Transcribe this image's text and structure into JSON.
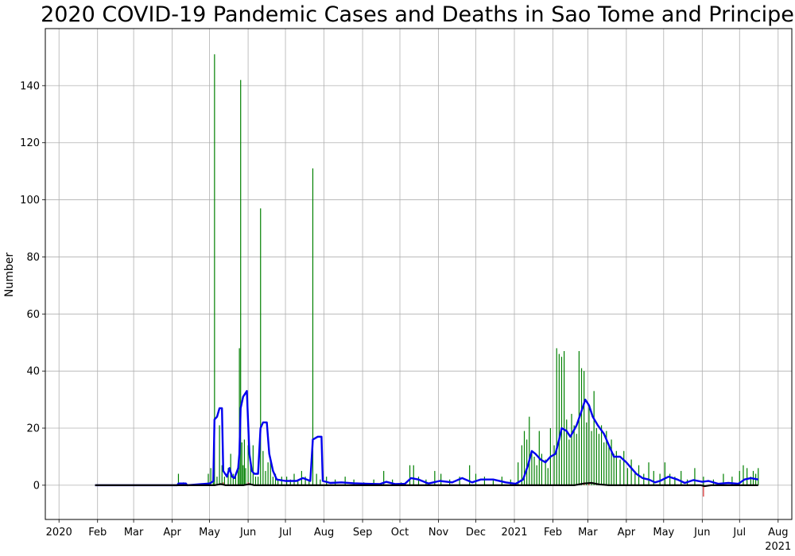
{
  "chart_data": {
    "type": "bar",
    "title": "2020 COVID-19 Pandemic Cases and Deaths in Sao Tome and Principe",
    "xlabel": "",
    "ylabel": "Number",
    "ylim": [
      -12,
      160
    ],
    "xlim": [
      "2019-12-21",
      "2021-08-12"
    ],
    "grid": true,
    "y_ticks": [
      0,
      20,
      40,
      60,
      80,
      100,
      120,
      140
    ],
    "x_ticks": [
      {
        "date": "2020-01-01",
        "label": "2020"
      },
      {
        "date": "2020-02-01",
        "label": "Feb"
      },
      {
        "date": "2020-03-01",
        "label": "Mar"
      },
      {
        "date": "2020-04-01",
        "label": "Apr"
      },
      {
        "date": "2020-05-01",
        "label": "May"
      },
      {
        "date": "2020-06-01",
        "label": "Jun"
      },
      {
        "date": "2020-07-01",
        "label": "Jul"
      },
      {
        "date": "2020-08-01",
        "label": "Aug"
      },
      {
        "date": "2020-09-01",
        "label": "Sep"
      },
      {
        "date": "2020-10-01",
        "label": "Oct"
      },
      {
        "date": "2020-11-01",
        "label": "Nov"
      },
      {
        "date": "2020-12-01",
        "label": "Dec"
      },
      {
        "date": "2021-01-01",
        "label": "2021"
      },
      {
        "date": "2021-02-01",
        "label": "Feb"
      },
      {
        "date": "2021-03-01",
        "label": "Mar"
      },
      {
        "date": "2021-04-01",
        "label": "Apr"
      },
      {
        "date": "2021-05-01",
        "label": "May"
      },
      {
        "date": "2021-06-01",
        "label": "Jun"
      },
      {
        "date": "2021-07-01",
        "label": "Jul"
      },
      {
        "date": "2021-08-01",
        "label": "Aug"
      }
    ],
    "x_secondary_label": {
      "date": "2021-08-01",
      "label": "2021"
    },
    "series": [
      {
        "kind": "bar",
        "color": "#008000",
        "points": [
          [
            "2020-04-06",
            4
          ],
          [
            "2020-04-10",
            1
          ],
          [
            "2020-04-30",
            4
          ],
          [
            "2020-05-02",
            6
          ],
          [
            "2020-05-04",
            2
          ],
          [
            "2020-05-05",
            151
          ],
          [
            "2020-05-07",
            3
          ],
          [
            "2020-05-09",
            21
          ],
          [
            "2020-05-11",
            7
          ],
          [
            "2020-05-13",
            3
          ],
          [
            "2020-05-16",
            6
          ],
          [
            "2020-05-18",
            11
          ],
          [
            "2020-05-20",
            4
          ],
          [
            "2020-05-22",
            3
          ],
          [
            "2020-05-24",
            8
          ],
          [
            "2020-05-25",
            48
          ],
          [
            "2020-05-26",
            142
          ],
          [
            "2020-05-27",
            15
          ],
          [
            "2020-05-28",
            7
          ],
          [
            "2020-05-29",
            16
          ],
          [
            "2020-05-30",
            6
          ],
          [
            "2020-06-01",
            14
          ],
          [
            "2020-06-03",
            9
          ],
          [
            "2020-06-05",
            14
          ],
          [
            "2020-06-07",
            3
          ],
          [
            "2020-06-09",
            3
          ],
          [
            "2020-06-11",
            97
          ],
          [
            "2020-06-13",
            12
          ],
          [
            "2020-06-15",
            5
          ],
          [
            "2020-06-17",
            8
          ],
          [
            "2020-06-19",
            9
          ],
          [
            "2020-06-21",
            3
          ],
          [
            "2020-06-23",
            4
          ],
          [
            "2020-06-25",
            2
          ],
          [
            "2020-06-28",
            3
          ],
          [
            "2020-07-02",
            3
          ],
          [
            "2020-07-05",
            2
          ],
          [
            "2020-07-08",
            4
          ],
          [
            "2020-07-11",
            2
          ],
          [
            "2020-07-14",
            5
          ],
          [
            "2020-07-17",
            3
          ],
          [
            "2020-07-20",
            2
          ],
          [
            "2020-07-23",
            111
          ],
          [
            "2020-07-26",
            4
          ],
          [
            "2020-07-29",
            2
          ],
          [
            "2020-08-03",
            3
          ],
          [
            "2020-08-10",
            2
          ],
          [
            "2020-08-18",
            3
          ],
          [
            "2020-08-25",
            2
          ],
          [
            "2020-09-02",
            1
          ],
          [
            "2020-09-10",
            2
          ],
          [
            "2020-09-18",
            5
          ],
          [
            "2020-09-25",
            2
          ],
          [
            "2020-10-02",
            1
          ],
          [
            "2020-10-09",
            7
          ],
          [
            "2020-10-12",
            7
          ],
          [
            "2020-10-16",
            3
          ],
          [
            "2020-10-22",
            2
          ],
          [
            "2020-10-29",
            5
          ],
          [
            "2020-11-03",
            4
          ],
          [
            "2020-11-10",
            2
          ],
          [
            "2020-11-18",
            3
          ],
          [
            "2020-11-26",
            7
          ],
          [
            "2020-12-01",
            4
          ],
          [
            "2020-12-08",
            3
          ],
          [
            "2020-12-15",
            2
          ],
          [
            "2020-12-22",
            3
          ],
          [
            "2020-12-29",
            2
          ],
          [
            "2021-01-04",
            8
          ],
          [
            "2021-01-07",
            14
          ],
          [
            "2021-01-09",
            19
          ],
          [
            "2021-01-11",
            16
          ],
          [
            "2021-01-13",
            24
          ],
          [
            "2021-01-15",
            12
          ],
          [
            "2021-01-17",
            10
          ],
          [
            "2021-01-19",
            7
          ],
          [
            "2021-01-21",
            19
          ],
          [
            "2021-01-23",
            11
          ],
          [
            "2021-01-26",
            9
          ],
          [
            "2021-01-28",
            6
          ],
          [
            "2021-01-30",
            20
          ],
          [
            "2021-02-02",
            14
          ],
          [
            "2021-02-04",
            48
          ],
          [
            "2021-02-06",
            46
          ],
          [
            "2021-02-08",
            45
          ],
          [
            "2021-02-10",
            47
          ],
          [
            "2021-02-12",
            23
          ],
          [
            "2021-02-14",
            16
          ],
          [
            "2021-02-16",
            25
          ],
          [
            "2021-02-18",
            21
          ],
          [
            "2021-02-20",
            18
          ],
          [
            "2021-02-22",
            47
          ],
          [
            "2021-02-24",
            41
          ],
          [
            "2021-02-26",
            40
          ],
          [
            "2021-02-28",
            22
          ],
          [
            "2021-03-02",
            28
          ],
          [
            "2021-03-04",
            19
          ],
          [
            "2021-03-06",
            33
          ],
          [
            "2021-03-08",
            20
          ],
          [
            "2021-03-10",
            18
          ],
          [
            "2021-03-12",
            21
          ],
          [
            "2021-03-14",
            15
          ],
          [
            "2021-03-16",
            19
          ],
          [
            "2021-03-18",
            14
          ],
          [
            "2021-03-20",
            16
          ],
          [
            "2021-03-22",
            11
          ],
          [
            "2021-03-24",
            12
          ],
          [
            "2021-03-27",
            9
          ],
          [
            "2021-03-30",
            12
          ],
          [
            "2021-04-02",
            6
          ],
          [
            "2021-04-05",
            9
          ],
          [
            "2021-04-08",
            5
          ],
          [
            "2021-04-11",
            7
          ],
          [
            "2021-04-15",
            4
          ],
          [
            "2021-04-19",
            8
          ],
          [
            "2021-04-23",
            5
          ],
          [
            "2021-04-28",
            4
          ],
          [
            "2021-05-02",
            8
          ],
          [
            "2021-05-06",
            4
          ],
          [
            "2021-05-10",
            3
          ],
          [
            "2021-05-15",
            5
          ],
          [
            "2021-05-20",
            2
          ],
          [
            "2021-05-26",
            6
          ],
          [
            "2021-06-02",
            3
          ],
          [
            "2021-06-10",
            2
          ],
          [
            "2021-06-18",
            4
          ],
          [
            "2021-06-25",
            3
          ],
          [
            "2021-07-01",
            5
          ],
          [
            "2021-07-04",
            7
          ],
          [
            "2021-07-07",
            6
          ],
          [
            "2021-07-10",
            3
          ],
          [
            "2021-07-12",
            5
          ],
          [
            "2021-07-14",
            4
          ],
          [
            "2021-07-16",
            6
          ]
        ]
      },
      {
        "kind": "bar",
        "color": "#d62728",
        "points": [
          [
            "2020-05-12",
            1
          ],
          [
            "2020-06-01",
            1
          ],
          [
            "2021-02-26",
            1
          ],
          [
            "2021-03-02",
            1
          ],
          [
            "2021-06-02",
            -4
          ]
        ]
      },
      {
        "kind": "line",
        "color": "#0000ee",
        "points": [
          [
            "2020-01-30",
            0
          ],
          [
            "2020-04-05",
            0
          ],
          [
            "2020-04-06",
            0.6
          ],
          [
            "2020-04-12",
            0.6
          ],
          [
            "2020-04-13",
            0
          ],
          [
            "2020-05-01",
            0.6
          ],
          [
            "2020-05-04",
            1.4
          ],
          [
            "2020-05-05",
            23
          ],
          [
            "2020-05-07",
            24
          ],
          [
            "2020-05-09",
            27
          ],
          [
            "2020-05-11",
            27
          ],
          [
            "2020-05-12",
            5
          ],
          [
            "2020-05-15",
            3
          ],
          [
            "2020-05-17",
            6
          ],
          [
            "2020-05-19",
            3
          ],
          [
            "2020-05-21",
            2.5
          ],
          [
            "2020-05-24",
            6
          ],
          [
            "2020-05-25",
            11
          ],
          [
            "2020-05-26",
            27
          ],
          [
            "2020-05-28",
            31
          ],
          [
            "2020-05-31",
            33
          ],
          [
            "2020-06-02",
            11
          ],
          [
            "2020-06-04",
            5
          ],
          [
            "2020-06-06",
            4
          ],
          [
            "2020-06-09",
            4
          ],
          [
            "2020-06-11",
            20
          ],
          [
            "2020-06-13",
            22
          ],
          [
            "2020-06-16",
            22
          ],
          [
            "2020-06-18",
            11
          ],
          [
            "2020-06-21",
            5
          ],
          [
            "2020-06-24",
            2
          ],
          [
            "2020-07-01",
            1.5
          ],
          [
            "2020-07-10",
            1.5
          ],
          [
            "2020-07-15",
            2.5
          ],
          [
            "2020-07-21",
            1.5
          ],
          [
            "2020-07-23",
            16
          ],
          [
            "2020-07-27",
            17
          ],
          [
            "2020-07-30",
            17
          ],
          [
            "2020-07-31",
            1.5
          ],
          [
            "2020-08-06",
            0.8
          ],
          [
            "2020-08-15",
            1.0
          ],
          [
            "2020-08-25",
            0.7
          ],
          [
            "2020-09-05",
            0.5
          ],
          [
            "2020-09-15",
            0.4
          ],
          [
            "2020-09-20",
            1.2
          ],
          [
            "2020-09-27",
            0.4
          ],
          [
            "2020-10-05",
            0.5
          ],
          [
            "2020-10-10",
            2.5
          ],
          [
            "2020-10-16",
            2.0
          ],
          [
            "2020-10-24",
            0.6
          ],
          [
            "2020-11-02",
            1.5
          ],
          [
            "2020-11-12",
            1.0
          ],
          [
            "2020-11-20",
            2.5
          ],
          [
            "2020-11-28",
            1.0
          ],
          [
            "2020-12-05",
            2.0
          ],
          [
            "2020-12-15",
            2.0
          ],
          [
            "2020-12-25",
            1.0
          ],
          [
            "2021-01-02",
            0.5
          ],
          [
            "2021-01-08",
            2
          ],
          [
            "2021-01-12",
            7
          ],
          [
            "2021-01-15",
            12
          ],
          [
            "2021-01-18",
            11
          ],
          [
            "2021-01-22",
            9
          ],
          [
            "2021-01-26",
            8
          ],
          [
            "2021-01-30",
            10
          ],
          [
            "2021-02-03",
            11
          ],
          [
            "2021-02-06",
            16
          ],
          [
            "2021-02-08",
            20
          ],
          [
            "2021-02-12",
            19
          ],
          [
            "2021-02-15",
            17
          ],
          [
            "2021-02-20",
            21
          ],
          [
            "2021-02-24",
            26
          ],
          [
            "2021-02-27",
            30
          ],
          [
            "2021-03-02",
            28
          ],
          [
            "2021-03-05",
            24
          ],
          [
            "2021-03-09",
            21
          ],
          [
            "2021-03-14",
            18
          ],
          [
            "2021-03-19",
            13
          ],
          [
            "2021-03-22",
            10
          ],
          [
            "2021-03-27",
            10
          ],
          [
            "2021-04-01",
            8
          ],
          [
            "2021-04-05",
            6
          ],
          [
            "2021-04-09",
            4
          ],
          [
            "2021-04-14",
            2.5
          ],
          [
            "2021-04-19",
            2
          ],
          [
            "2021-04-24",
            1
          ],
          [
            "2021-04-28",
            1.5
          ],
          [
            "2021-05-05",
            3
          ],
          [
            "2021-05-12",
            2
          ],
          [
            "2021-05-18",
            0.8
          ],
          [
            "2021-05-25",
            1.8
          ],
          [
            "2021-06-01",
            1.2
          ],
          [
            "2021-06-06",
            1.5
          ],
          [
            "2021-06-14",
            0.5
          ],
          [
            "2021-06-22",
            0.8
          ],
          [
            "2021-06-30",
            0.5
          ],
          [
            "2021-07-05",
            2
          ],
          [
            "2021-07-10",
            2.5
          ],
          [
            "2021-07-16",
            2
          ]
        ]
      },
      {
        "kind": "line",
        "color": "#000000",
        "points": [
          [
            "2020-01-30",
            0
          ],
          [
            "2020-05-05",
            0
          ],
          [
            "2020-05-10",
            0.4
          ],
          [
            "2020-05-14",
            0
          ],
          [
            "2020-05-28",
            0
          ],
          [
            "2020-06-02",
            0.4
          ],
          [
            "2020-06-06",
            0
          ],
          [
            "2021-02-18",
            0
          ],
          [
            "2021-02-26",
            0.6
          ],
          [
            "2021-03-04",
            0.8
          ],
          [
            "2021-03-10",
            0.3
          ],
          [
            "2021-03-18",
            0
          ],
          [
            "2021-05-31",
            0
          ],
          [
            "2021-06-03",
            -0.3
          ],
          [
            "2021-06-08",
            0
          ],
          [
            "2021-07-16",
            0
          ]
        ]
      }
    ]
  }
}
